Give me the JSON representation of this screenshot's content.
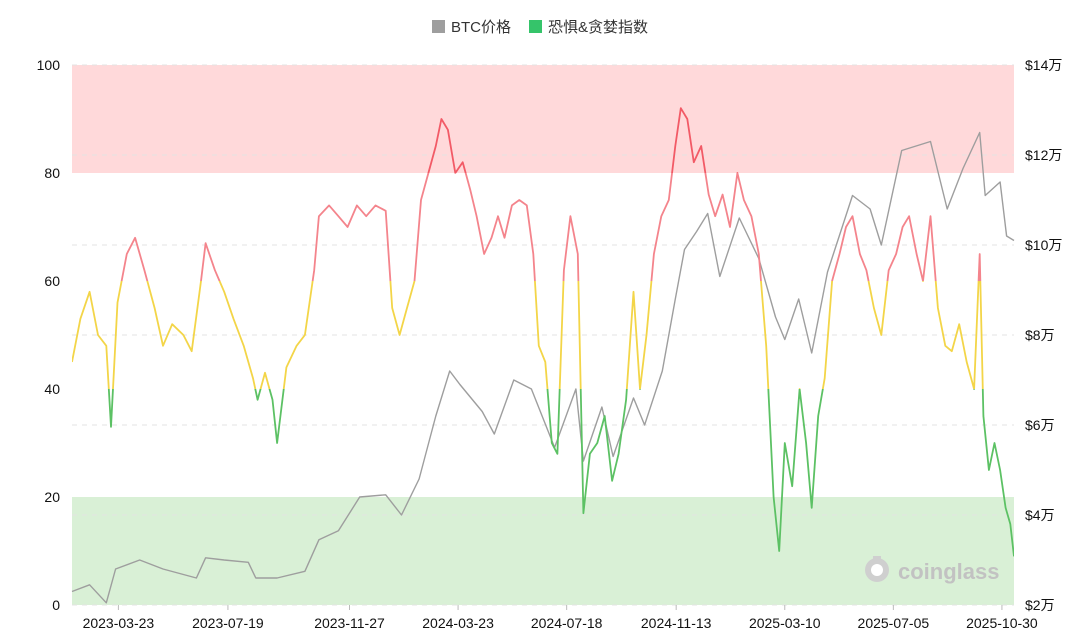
{
  "legend": {
    "items": [
      {
        "label": "BTC价格",
        "color": "#9e9e9e"
      },
      {
        "label": "恐惧&贪婪指数",
        "color": "#35c46a"
      }
    ]
  },
  "watermark": {
    "text": "coinglass"
  },
  "colors": {
    "extreme_greed_zone": "#ffd9da",
    "extreme_fear_zone": "#d9f0d6",
    "greed_line": "#f4848c",
    "neutral_line": "#f3d548",
    "fear_line": "#5cc164",
    "extreme_greed_line": "#f25a66",
    "btc_line": "#9e9e9e"
  },
  "chart_data": {
    "type": "line",
    "x_ticks": [
      "2023-03-23",
      "2023-07-19",
      "2023-11-27",
      "2024-03-23",
      "2024-07-18",
      "2024-11-13",
      "2025-03-10",
      "2025-07-05",
      "2025-10-30"
    ],
    "x_range": [
      "2023-02-01",
      "2025-11-12"
    ],
    "y_left": {
      "min": 0,
      "max": 100,
      "ticks": [
        "0",
        "20",
        "40",
        "60",
        "80",
        "100"
      ]
    },
    "y_right": {
      "min": 20000,
      "max": 140000,
      "ticks": [
        "$2万",
        "$4万",
        "$6万",
        "$8万",
        "$10万",
        "$12万",
        "$14万"
      ]
    },
    "zones": [
      {
        "from": 80,
        "to": 100,
        "label": ""
      },
      {
        "from": 0,
        "to": 20,
        "label": ""
      }
    ],
    "series": [
      {
        "name": "恐惧&贪婪指数",
        "axis": "left",
        "thresholds": [
          20,
          40,
          60,
          80
        ],
        "points": [
          [
            "2023-02-01",
            45
          ],
          [
            "2023-02-10",
            53
          ],
          [
            "2023-02-20",
            58
          ],
          [
            "2023-03-01",
            50
          ],
          [
            "2023-03-10",
            48
          ],
          [
            "2023-03-15",
            33
          ],
          [
            "2023-03-22",
            56
          ],
          [
            "2023-04-01",
            65
          ],
          [
            "2023-04-10",
            68
          ],
          [
            "2023-04-20",
            62
          ],
          [
            "2023-05-01",
            55
          ],
          [
            "2023-05-10",
            48
          ],
          [
            "2023-05-20",
            52
          ],
          [
            "2023-06-01",
            50
          ],
          [
            "2023-06-10",
            47
          ],
          [
            "2023-06-20",
            60
          ],
          [
            "2023-06-25",
            67
          ],
          [
            "2023-07-05",
            62
          ],
          [
            "2023-07-15",
            58
          ],
          [
            "2023-07-25",
            53
          ],
          [
            "2023-08-05",
            48
          ],
          [
            "2023-08-15",
            42
          ],
          [
            "2023-08-20",
            38
          ],
          [
            "2023-08-28",
            43
          ],
          [
            "2023-09-05",
            38
          ],
          [
            "2023-09-10",
            30
          ],
          [
            "2023-09-20",
            44
          ],
          [
            "2023-10-01",
            48
          ],
          [
            "2023-10-10",
            50
          ],
          [
            "2023-10-20",
            62
          ],
          [
            "2023-10-25",
            72
          ],
          [
            "2023-11-05",
            74
          ],
          [
            "2023-11-15",
            72
          ],
          [
            "2023-11-25",
            70
          ],
          [
            "2023-12-05",
            74
          ],
          [
            "2023-12-15",
            72
          ],
          [
            "2023-12-25",
            74
          ],
          [
            "2024-01-05",
            73
          ],
          [
            "2024-01-12",
            55
          ],
          [
            "2024-01-20",
            50
          ],
          [
            "2024-01-28",
            55
          ],
          [
            "2024-02-05",
            60
          ],
          [
            "2024-02-12",
            75
          ],
          [
            "2024-02-20",
            80
          ],
          [
            "2024-02-28",
            85
          ],
          [
            "2024-03-05",
            90
          ],
          [
            "2024-03-12",
            88
          ],
          [
            "2024-03-20",
            80
          ],
          [
            "2024-03-28",
            82
          ],
          [
            "2024-04-05",
            77
          ],
          [
            "2024-04-12",
            72
          ],
          [
            "2024-04-20",
            65
          ],
          [
            "2024-04-28",
            68
          ],
          [
            "2024-05-05",
            72
          ],
          [
            "2024-05-12",
            68
          ],
          [
            "2024-05-20",
            74
          ],
          [
            "2024-05-28",
            75
          ],
          [
            "2024-06-05",
            74
          ],
          [
            "2024-06-12",
            65
          ],
          [
            "2024-06-18",
            48
          ],
          [
            "2024-06-25",
            45
          ],
          [
            "2024-07-02",
            30
          ],
          [
            "2024-07-08",
            28
          ],
          [
            "2024-07-15",
            62
          ],
          [
            "2024-07-22",
            72
          ],
          [
            "2024-07-30",
            65
          ],
          [
            "2024-08-05",
            17
          ],
          [
            "2024-08-12",
            28
          ],
          [
            "2024-08-20",
            30
          ],
          [
            "2024-08-28",
            35
          ],
          [
            "2024-09-05",
            23
          ],
          [
            "2024-09-12",
            28
          ],
          [
            "2024-09-20",
            38
          ],
          [
            "2024-09-28",
            58
          ],
          [
            "2024-10-05",
            40
          ],
          [
            "2024-10-12",
            50
          ],
          [
            "2024-10-20",
            65
          ],
          [
            "2024-10-28",
            72
          ],
          [
            "2024-11-05",
            75
          ],
          [
            "2024-11-12",
            85
          ],
          [
            "2024-11-18",
            92
          ],
          [
            "2024-11-25",
            90
          ],
          [
            "2024-12-02",
            82
          ],
          [
            "2024-12-10",
            85
          ],
          [
            "2024-12-18",
            76
          ],
          [
            "2024-12-25",
            72
          ],
          [
            "2025-01-02",
            76
          ],
          [
            "2025-01-10",
            70
          ],
          [
            "2025-01-18",
            80
          ],
          [
            "2025-01-25",
            75
          ],
          [
            "2025-02-02",
            72
          ],
          [
            "2025-02-10",
            65
          ],
          [
            "2025-02-18",
            48
          ],
          [
            "2025-02-26",
            20
          ],
          [
            "2025-03-04",
            10
          ],
          [
            "2025-03-10",
            30
          ],
          [
            "2025-03-18",
            22
          ],
          [
            "2025-03-26",
            40
          ],
          [
            "2025-04-02",
            30
          ],
          [
            "2025-04-08",
            18
          ],
          [
            "2025-04-15",
            35
          ],
          [
            "2025-04-22",
            42
          ],
          [
            "2025-04-30",
            60
          ],
          [
            "2025-05-08",
            65
          ],
          [
            "2025-05-15",
            70
          ],
          [
            "2025-05-22",
            72
          ],
          [
            "2025-05-30",
            65
          ],
          [
            "2025-06-06",
            62
          ],
          [
            "2025-06-14",
            55
          ],
          [
            "2025-06-22",
            50
          ],
          [
            "2025-06-30",
            62
          ],
          [
            "2025-07-08",
            65
          ],
          [
            "2025-07-15",
            70
          ],
          [
            "2025-07-22",
            72
          ],
          [
            "2025-07-30",
            65
          ],
          [
            "2025-08-06",
            60
          ],
          [
            "2025-08-14",
            72
          ],
          [
            "2025-08-22",
            55
          ],
          [
            "2025-08-30",
            48
          ],
          [
            "2025-09-06",
            47
          ],
          [
            "2025-09-14",
            52
          ],
          [
            "2025-09-22",
            45
          ],
          [
            "2025-09-30",
            40
          ],
          [
            "2025-10-06",
            65
          ],
          [
            "2025-10-10",
            35
          ],
          [
            "2025-10-16",
            25
          ],
          [
            "2025-10-22",
            30
          ],
          [
            "2025-10-28",
            25
          ],
          [
            "2025-11-03",
            18
          ],
          [
            "2025-11-08",
            15
          ],
          [
            "2025-11-12",
            9
          ]
        ]
      },
      {
        "name": "BTC价格",
        "axis": "right",
        "points": [
          [
            "2023-02-01",
            23000
          ],
          [
            "2023-02-20",
            24500
          ],
          [
            "2023-03-10",
            20500
          ],
          [
            "2023-03-20",
            28000
          ],
          [
            "2023-04-15",
            30000
          ],
          [
            "2023-05-10",
            28000
          ],
          [
            "2023-06-15",
            26000
          ],
          [
            "2023-06-25",
            30500
          ],
          [
            "2023-07-15",
            30000
          ],
          [
            "2023-08-10",
            29500
          ],
          [
            "2023-08-18",
            26000
          ],
          [
            "2023-09-10",
            26000
          ],
          [
            "2023-10-10",
            27500
          ],
          [
            "2023-10-25",
            34500
          ],
          [
            "2023-11-15",
            36500
          ],
          [
            "2023-12-08",
            44000
          ],
          [
            "2024-01-05",
            44500
          ],
          [
            "2024-01-22",
            40000
          ],
          [
            "2024-02-10",
            48000
          ],
          [
            "2024-02-28",
            62000
          ],
          [
            "2024-03-14",
            72000
          ],
          [
            "2024-03-25",
            69000
          ],
          [
            "2024-04-18",
            63000
          ],
          [
            "2024-05-01",
            58000
          ],
          [
            "2024-05-22",
            70000
          ],
          [
            "2024-06-10",
            68000
          ],
          [
            "2024-07-05",
            55000
          ],
          [
            "2024-07-28",
            68000
          ],
          [
            "2024-08-05",
            52000
          ],
          [
            "2024-08-25",
            64000
          ],
          [
            "2024-09-06",
            53000
          ],
          [
            "2024-09-28",
            66000
          ],
          [
            "2024-10-10",
            60000
          ],
          [
            "2024-10-29",
            72000
          ],
          [
            "2024-11-12",
            88000
          ],
          [
            "2024-11-22",
            99000
          ],
          [
            "2024-12-05",
            103000
          ],
          [
            "2024-12-17",
            107000
          ],
          [
            "2024-12-30",
            93000
          ],
          [
            "2025-01-20",
            106000
          ],
          [
            "2025-02-10",
            97000
          ],
          [
            "2025-02-28",
            84000
          ],
          [
            "2025-03-10",
            79000
          ],
          [
            "2025-03-25",
            88000
          ],
          [
            "2025-04-08",
            76000
          ],
          [
            "2025-04-25",
            94000
          ],
          [
            "2025-05-22",
            111000
          ],
          [
            "2025-06-10",
            108000
          ],
          [
            "2025-06-22",
            100000
          ],
          [
            "2025-07-14",
            121000
          ],
          [
            "2025-08-14",
            123000
          ],
          [
            "2025-09-01",
            108000
          ],
          [
            "2025-09-18",
            117000
          ],
          [
            "2025-10-06",
            125000
          ],
          [
            "2025-10-12",
            111000
          ],
          [
            "2025-10-28",
            114000
          ],
          [
            "2025-11-04",
            102000
          ],
          [
            "2025-11-12",
            101000
          ]
        ]
      }
    ]
  }
}
